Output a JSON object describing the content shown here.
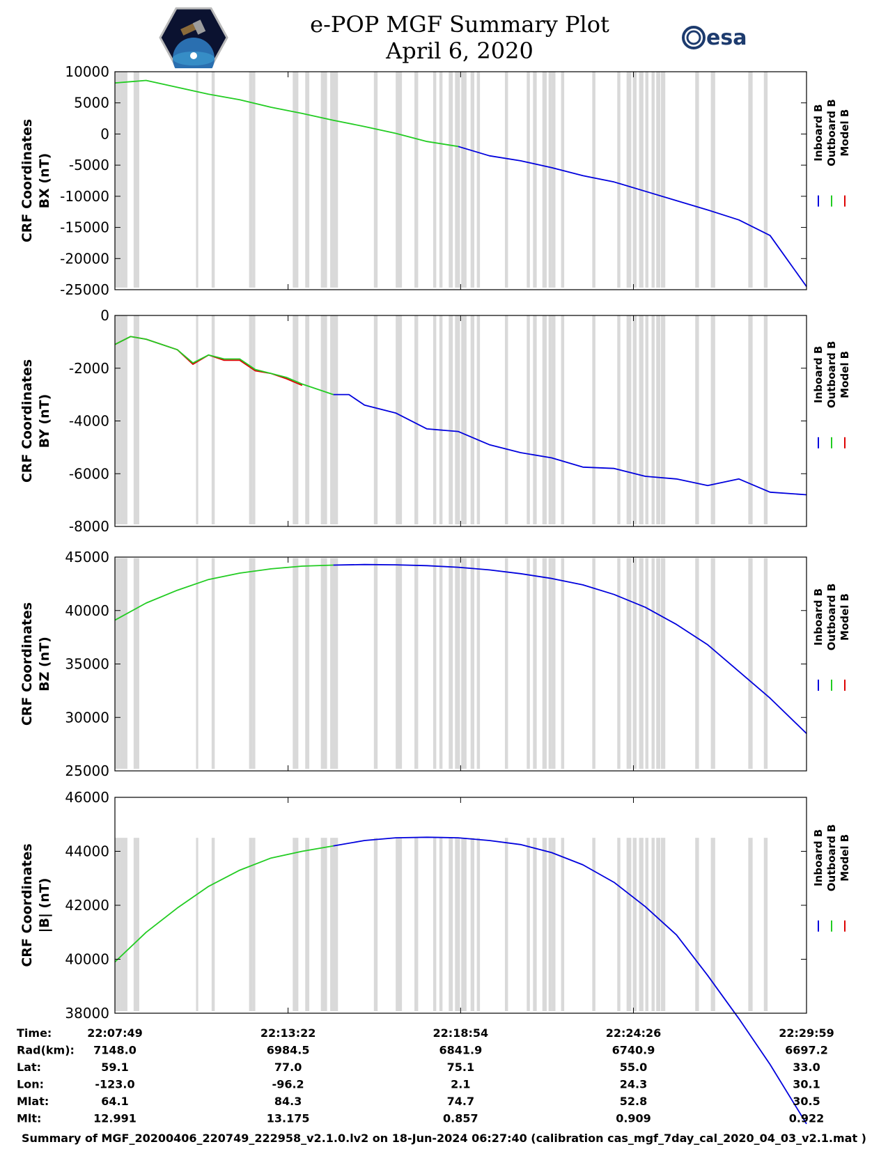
{
  "title": {
    "line1": "e-POP MGF Summary Plot",
    "line2": "April 6, 2020"
  },
  "logos": {
    "left": "cassiope-mission-patch",
    "right_text": "esa"
  },
  "colors": {
    "inboard": "#0000dd",
    "outboard": "#22cc22",
    "model": "#dd0000",
    "gap": "#d9d9d9"
  },
  "legend": [
    "Inboard B",
    "Outboard B",
    "Model B"
  ],
  "x_axis": {
    "t0_min": 0,
    "t1_min": 22.167,
    "tick_min": [
      0,
      5.55,
      11.08,
      16.62,
      22.167
    ],
    "rows": [
      {
        "label": "Time:",
        "values": [
          "22:07:49",
          "22:13:22",
          "22:18:54",
          "22:24:26",
          "22:29:59"
        ]
      },
      {
        "label": "Rad(km):",
        "values": [
          "7148.0",
          "6984.5",
          "6841.9",
          "6740.9",
          "6697.2"
        ]
      },
      {
        "label": "Lat:",
        "values": [
          "59.1",
          "77.0",
          "75.1",
          "55.0",
          "33.0"
        ]
      },
      {
        "label": "Lon:",
        "values": [
          "-123.0",
          "-96.2",
          "2.1",
          "24.3",
          "30.1"
        ]
      },
      {
        "label": "Mlat:",
        "values": [
          "64.1",
          "84.3",
          "74.7",
          "52.8",
          "30.5"
        ]
      },
      {
        "label": "Mlt:",
        "values": [
          "12.991",
          "13.175",
          "0.857",
          "0.909",
          "0.922"
        ]
      }
    ]
  },
  "chart_data": [
    {
      "type": "line",
      "ylabel1": "CRF Coordinates",
      "ylabel2": "BX (nT)",
      "ylim": [
        -25000,
        10000
      ],
      "yticks": [
        10000,
        5000,
        0,
        -5000,
        -10000,
        -15000,
        -20000,
        -25000
      ],
      "gap_top": 10000,
      "x": [
        0,
        0.5,
        1,
        2,
        3,
        4,
        5,
        6,
        7,
        8,
        9,
        10,
        11,
        12,
        13,
        14,
        15,
        16,
        17,
        18,
        19,
        20,
        21,
        22.167
      ],
      "outboard": [
        8200,
        8400,
        8600,
        7500,
        6400,
        5500,
        4300,
        3300,
        2200,
        1200,
        100,
        -1200,
        -2000,
        null,
        null,
        null,
        null,
        null,
        null,
        null,
        null,
        null,
        null,
        null
      ],
      "inboard": [
        null,
        null,
        null,
        null,
        null,
        null,
        null,
        null,
        null,
        null,
        null,
        null,
        -2000,
        -3500,
        -4300,
        -5400,
        -6700,
        -7700,
        -9200,
        -10700,
        -12200,
        -13800,
        -16300,
        -24500
      ]
    },
    {
      "type": "line",
      "ylabel1": "CRF Coordinates",
      "ylabel2": "BY (nT)",
      "ylim": [
        -8000,
        0
      ],
      "yticks": [
        0,
        -2000,
        -4000,
        -6000,
        -8000
      ],
      "gap_top": -10,
      "x": [
        0,
        0.5,
        1,
        2,
        2.5,
        3,
        3.5,
        4,
        4.5,
        5,
        5.5,
        6,
        7,
        7.5,
        8,
        9,
        10,
        11,
        12,
        13,
        14,
        15,
        16,
        17,
        18,
        19,
        20,
        21,
        22.167
      ],
      "outboard": [
        -1100,
        -800,
        -900,
        -1300,
        -1800,
        -1500,
        -1650,
        -1650,
        -2050,
        -2200,
        -2350,
        -2600,
        -3000,
        null,
        null,
        null,
        null,
        null,
        null,
        null,
        null,
        null,
        null,
        null,
        null,
        null,
        null,
        null,
        null
      ],
      "model": [
        -1100,
        -800,
        -900,
        -1300,
        -1850,
        -1500,
        -1700,
        -1700,
        -2100,
        -2200,
        -2400,
        -2650,
        null,
        null,
        null,
        null,
        null,
        null,
        null,
        null,
        null,
        null,
        null,
        null,
        null,
        null,
        null,
        null,
        null
      ],
      "inboard": [
        null,
        null,
        null,
        null,
        null,
        null,
        null,
        null,
        null,
        null,
        null,
        null,
        -3000,
        -3000,
        -3400,
        -3700,
        -4300,
        -4400,
        -4900,
        -5200,
        -5400,
        -5750,
        -5800,
        -6100,
        -6200,
        -6450,
        -6200,
        -6700,
        -6800
      ]
    },
    {
      "type": "line",
      "ylabel1": "CRF Coordinates",
      "ylabel2": "BZ (nT)",
      "ylim": [
        25000,
        45000
      ],
      "yticks": [
        45000,
        40000,
        35000,
        30000,
        25000
      ],
      "gap_top": 44900,
      "x": [
        0,
        1,
        2,
        3,
        4,
        5,
        6,
        7,
        8,
        9,
        10,
        11,
        12,
        13,
        14,
        15,
        16,
        17,
        18,
        19,
        20,
        21,
        22.167
      ],
      "outboard": [
        39100,
        40700,
        41900,
        42900,
        43500,
        43900,
        44150,
        44250,
        null,
        null,
        null,
        null,
        null,
        null,
        null,
        null,
        null,
        null,
        null,
        null,
        null,
        null,
        null
      ],
      "inboard": [
        null,
        null,
        null,
        null,
        null,
        null,
        null,
        44250,
        44300,
        44280,
        44200,
        44050,
        43800,
        43450,
        43000,
        42400,
        41500,
        40300,
        38700,
        36800,
        34300,
        31800,
        28500
      ]
    },
    {
      "type": "line",
      "ylabel1": "CRF Coordinates",
      "ylabel2": "|B| (nT)",
      "ylim": [
        38000,
        46000
      ],
      "yticks": [
        46000,
        44000,
        42000,
        40000,
        38000
      ],
      "gap_top": 44500,
      "x": [
        0,
        1,
        2,
        3,
        4,
        5,
        6,
        7,
        8,
        9,
        10,
        11,
        12,
        13,
        14,
        15,
        16,
        17,
        18,
        19,
        20,
        21,
        22.167
      ],
      "outboard": [
        39900,
        41000,
        41900,
        42700,
        43300,
        43750,
        44000,
        44200,
        null,
        null,
        null,
        null,
        null,
        null,
        null,
        null,
        null,
        null,
        null,
        null,
        null,
        null,
        null
      ],
      "inboard": [
        null,
        null,
        null,
        null,
        null,
        null,
        null,
        44200,
        44400,
        44500,
        44520,
        44500,
        44400,
        44250,
        43950,
        43500,
        42850,
        41950,
        40900,
        39400,
        37800,
        36100,
        33900
      ]
    }
  ],
  "gap_minutes": [
    [
      0,
      0.2
    ],
    [
      0.2,
      0.4
    ],
    [
      0.6,
      0.78
    ],
    [
      2.6,
      2.67
    ],
    [
      3.1,
      3.2
    ],
    [
      4.3,
      4.4
    ],
    [
      4.4,
      4.5
    ],
    [
      5.7,
      5.88
    ],
    [
      6.1,
      6.23
    ],
    [
      6.6,
      6.8
    ],
    [
      6.9,
      7.04
    ],
    [
      7.0,
      7.15
    ],
    [
      8.3,
      8.42
    ],
    [
      9.0,
      9.2
    ],
    [
      9.6,
      9.72
    ],
    [
      10.2,
      10.3
    ],
    [
      10.4,
      10.5
    ],
    [
      10.7,
      10.83
    ],
    [
      10.9,
      11.06
    ],
    [
      11.1,
      11.27
    ],
    [
      11.4,
      11.52
    ],
    [
      11.6,
      11.7
    ],
    [
      12.5,
      12.6
    ],
    [
      13.2,
      13.3
    ],
    [
      13.4,
      13.52
    ],
    [
      13.7,
      13.84
    ],
    [
      13.9,
      14.0
    ],
    [
      14.0,
      14.12
    ],
    [
      14.3,
      14.4
    ],
    [
      15.3,
      15.4
    ],
    [
      16.1,
      16.2
    ],
    [
      16.4,
      16.55
    ],
    [
      16.6,
      16.72
    ],
    [
      16.8,
      16.94
    ],
    [
      17.0,
      17.1
    ],
    [
      17.2,
      17.3
    ],
    [
      17.35,
      17.48
    ],
    [
      17.5,
      17.64
    ],
    [
      18.6,
      18.72
    ],
    [
      19.1,
      19.24
    ],
    [
      20.3,
      20.44
    ],
    [
      20.8,
      20.92
    ]
  ],
  "footer": "Summary of MGF_20200406_220749_222958_v2.1.0.lv2 on 18-Jun-2024 06:27:40 (calibration cas_mgf_7day_cal_2020_04_03_v2.1.mat )"
}
